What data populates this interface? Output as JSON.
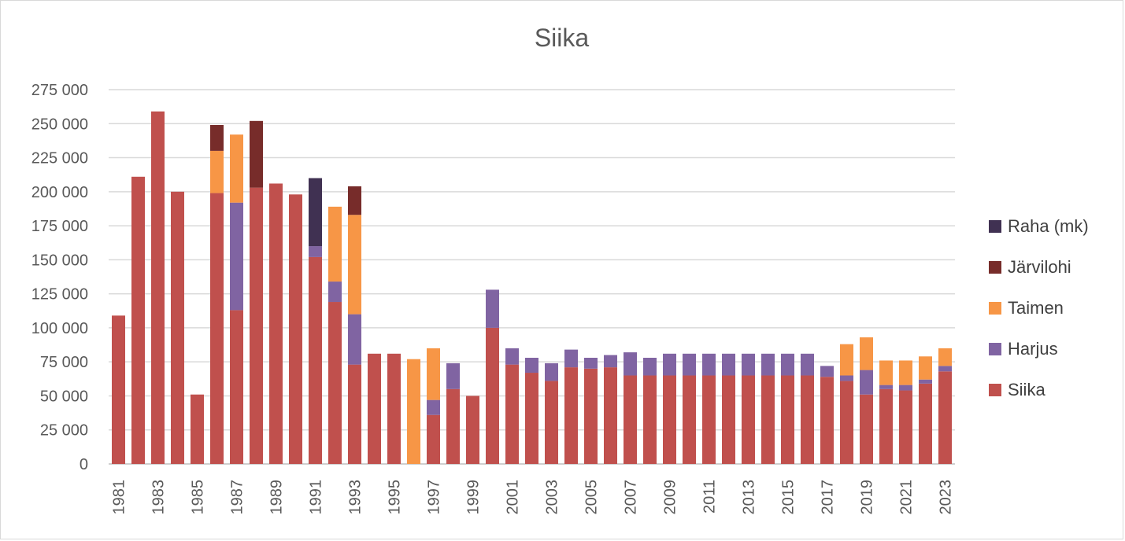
{
  "chart_data": {
    "type": "bar",
    "stacked": true,
    "title": "Siika",
    "xlabel": "",
    "ylabel": "",
    "ylim": [
      0,
      275000
    ],
    "yticks": [
      0,
      25000,
      50000,
      75000,
      100000,
      125000,
      150000,
      175000,
      200000,
      225000,
      250000,
      275000
    ],
    "ytick_labels": [
      "0",
      "25 000",
      "50 000",
      "75 000",
      "100 000",
      "125 000",
      "150 000",
      "175 000",
      "200 000",
      "225 000",
      "250 000",
      "275 000"
    ],
    "grid": true,
    "legend_position": "right",
    "categories": [
      1981,
      1982,
      1983,
      1984,
      1985,
      1986,
      1987,
      1988,
      1989,
      1990,
      1991,
      1992,
      1993,
      1994,
      1995,
      1996,
      1997,
      1998,
      1999,
      2000,
      2001,
      2002,
      2003,
      2004,
      2005,
      2006,
      2007,
      2008,
      2009,
      2010,
      2011,
      2012,
      2013,
      2014,
      2015,
      2016,
      2017,
      2018,
      2019,
      2020,
      2021,
      2022,
      2023
    ],
    "x_tick_labels": [
      "1981",
      "1983",
      "1985",
      "1987",
      "1989",
      "1991",
      "1993",
      "1995",
      "1997",
      "1999",
      "2001",
      "2003",
      "2005",
      "2007",
      "2009",
      "2011",
      "2013",
      "2015",
      "2017",
      "2019",
      "2021",
      "2023"
    ],
    "series": [
      {
        "name": "Siika",
        "color": "#c0504d",
        "values": [
          109000,
          211000,
          259000,
          200000,
          51000,
          199000,
          113000,
          203000,
          206000,
          198000,
          152000,
          119000,
          73000,
          81000,
          81000,
          0,
          36000,
          55000,
          50000,
          100000,
          73000,
          67000,
          61000,
          71000,
          70000,
          71000,
          65000,
          65000,
          65000,
          65000,
          65000,
          65000,
          65000,
          65000,
          65000,
          65000,
          64000,
          61000,
          51000,
          55000,
          54000,
          59000,
          68000
        ]
      },
      {
        "name": "Harjus",
        "color": "#8064a2",
        "values": [
          0,
          0,
          0,
          0,
          0,
          0,
          79000,
          0,
          0,
          0,
          8000,
          15000,
          37000,
          0,
          0,
          0,
          11000,
          19000,
          0,
          28000,
          12000,
          11000,
          13000,
          13000,
          8000,
          9000,
          17000,
          13000,
          16000,
          16000,
          16000,
          16000,
          16000,
          16000,
          16000,
          16000,
          8000,
          4000,
          18000,
          3000,
          4000,
          3000,
          4000
        ]
      },
      {
        "name": "Taimen",
        "color": "#f79646",
        "values": [
          0,
          0,
          0,
          0,
          0,
          31000,
          50000,
          0,
          0,
          0,
          0,
          55000,
          73000,
          0,
          0,
          77000,
          38000,
          0,
          0,
          0,
          0,
          0,
          0,
          0,
          0,
          0,
          0,
          0,
          0,
          0,
          0,
          0,
          0,
          0,
          0,
          0,
          0,
          23000,
          24000,
          18000,
          18000,
          17000,
          13000
        ]
      },
      {
        "name": "Järvilohi",
        "color": "#772c2a",
        "values": [
          0,
          0,
          0,
          0,
          0,
          19000,
          0,
          49000,
          0,
          0,
          0,
          0,
          21000,
          0,
          0,
          0,
          0,
          0,
          0,
          0,
          0,
          0,
          0,
          0,
          0,
          0,
          0,
          0,
          0,
          0,
          0,
          0,
          0,
          0,
          0,
          0,
          0,
          0,
          0,
          0,
          0,
          0,
          0
        ]
      },
      {
        "name": "Raha (mk)",
        "color": "#403152",
        "values": [
          0,
          0,
          0,
          0,
          0,
          0,
          0,
          0,
          0,
          0,
          50000,
          0,
          0,
          0,
          0,
          0,
          0,
          0,
          0,
          0,
          0,
          0,
          0,
          0,
          0,
          0,
          0,
          0,
          0,
          0,
          0,
          0,
          0,
          0,
          0,
          0,
          0,
          0,
          0,
          0,
          0,
          0,
          0
        ]
      }
    ],
    "legend_order": [
      "Raha (mk)",
      "Järvilohi",
      "Taimen",
      "Harjus",
      "Siika"
    ]
  }
}
